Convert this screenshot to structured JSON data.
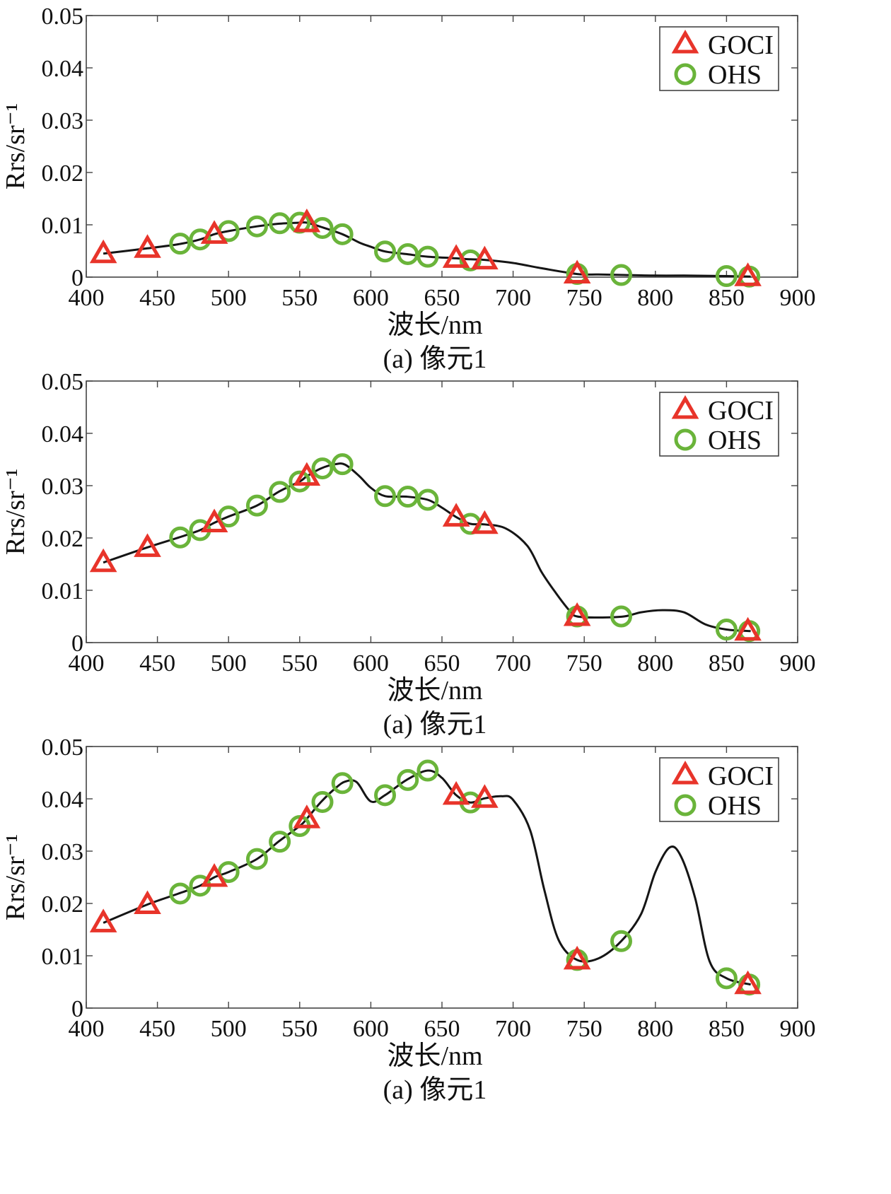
{
  "chart_data": [
    {
      "type": "line",
      "caption": "(a) 像元1",
      "xlabel": "波长/nm",
      "ylabel": "Rrs/sr⁻¹",
      "xlim": [
        400,
        900
      ],
      "ylim": [
        0,
        0.05
      ],
      "xticks": [
        "400",
        "450",
        "500",
        "550",
        "600",
        "650",
        "700",
        "750",
        "800",
        "850",
        "900"
      ],
      "yticks": [
        "0",
        "0.01",
        "0.02",
        "0.03",
        "0.04",
        "0.05"
      ],
      "legend": {
        "position": "top-right",
        "entries": [
          "GOCI",
          "OHS"
        ]
      },
      "curve": [
        [
          412,
          0.0045
        ],
        [
          443,
          0.0055
        ],
        [
          465,
          0.0063
        ],
        [
          480,
          0.0072
        ],
        [
          490,
          0.0082
        ],
        [
          500,
          0.0088
        ],
        [
          520,
          0.0097
        ],
        [
          535,
          0.0102
        ],
        [
          550,
          0.0104
        ],
        [
          555,
          0.0104
        ],
        [
          565,
          0.0096
        ],
        [
          580,
          0.0082
        ],
        [
          592,
          0.0066
        ],
        [
          600,
          0.0058
        ],
        [
          610,
          0.0049
        ],
        [
          625,
          0.0044
        ],
        [
          640,
          0.0039
        ],
        [
          660,
          0.0036
        ],
        [
          670,
          0.0034
        ],
        [
          680,
          0.0033
        ],
        [
          700,
          0.0027
        ],
        [
          720,
          0.0017
        ],
        [
          745,
          0.0006
        ],
        [
          760,
          0.0005
        ],
        [
          778,
          0.0004
        ],
        [
          800,
          0.0003
        ],
        [
          820,
          0.0003
        ],
        [
          850,
          0.0002
        ],
        [
          867,
          0.0001
        ]
      ],
      "series": [
        {
          "name": "GOCI",
          "marker": "triangle",
          "color": "#e8342a",
          "x": [
            412,
            443,
            490,
            555,
            660,
            680,
            745,
            865
          ],
          "y": [
            0.0045,
            0.0055,
            0.0082,
            0.0104,
            0.0036,
            0.0033,
            0.0006,
            0.0001
          ]
        },
        {
          "name": "OHS",
          "marker": "circle",
          "color": "#6ab43a",
          "x": [
            466,
            480,
            500,
            520,
            536,
            550,
            566,
            580,
            610,
            626,
            640,
            670,
            745,
            776,
            850,
            866
          ],
          "y": [
            0.0064,
            0.0072,
            0.0088,
            0.0097,
            0.0103,
            0.0104,
            0.0094,
            0.0082,
            0.0049,
            0.0044,
            0.0039,
            0.0032,
            0.0006,
            0.0004,
            0.0002,
            0.0001
          ]
        }
      ]
    },
    {
      "type": "line",
      "caption": "(a) 像元1",
      "xlabel": "波长/nm",
      "ylabel": "Rrs/sr⁻¹",
      "xlim": [
        400,
        900
      ],
      "ylim": [
        0,
        0.05
      ],
      "xticks": [
        "400",
        "450",
        "500",
        "550",
        "600",
        "650",
        "700",
        "750",
        "800",
        "850",
        "900"
      ],
      "yticks": [
        "0",
        "0.01",
        "0.02",
        "0.03",
        "0.04",
        "0.05"
      ],
      "legend": {
        "position": "top-right",
        "entries": [
          "GOCI",
          "OHS"
        ]
      },
      "curve": [
        [
          412,
          0.0153
        ],
        [
          443,
          0.0182
        ],
        [
          465,
          0.0201
        ],
        [
          480,
          0.0215
        ],
        [
          490,
          0.0229
        ],
        [
          500,
          0.0241
        ],
        [
          520,
          0.0262
        ],
        [
          535,
          0.0288
        ],
        [
          550,
          0.0308
        ],
        [
          555,
          0.0318
        ],
        [
          565,
          0.0333
        ],
        [
          575,
          0.0341
        ],
        [
          582,
          0.034
        ],
        [
          592,
          0.0318
        ],
        [
          600,
          0.0296
        ],
        [
          610,
          0.028
        ],
        [
          625,
          0.0279
        ],
        [
          640,
          0.0273
        ],
        [
          650,
          0.0258
        ],
        [
          660,
          0.024
        ],
        [
          670,
          0.0227
        ],
        [
          680,
          0.0226
        ],
        [
          695,
          0.0218
        ],
        [
          710,
          0.0185
        ],
        [
          720,
          0.0135
        ],
        [
          730,
          0.0095
        ],
        [
          740,
          0.006
        ],
        [
          745,
          0.005
        ],
        [
          760,
          0.0048
        ],
        [
          778,
          0.005
        ],
        [
          790,
          0.0058
        ],
        [
          805,
          0.0062
        ],
        [
          820,
          0.0058
        ],
        [
          835,
          0.0035
        ],
        [
          850,
          0.0025
        ],
        [
          867,
          0.0022
        ]
      ],
      "series": [
        {
          "name": "GOCI",
          "marker": "triangle",
          "color": "#e8342a",
          "x": [
            412,
            443,
            490,
            555,
            660,
            680,
            745,
            865
          ],
          "y": [
            0.0153,
            0.0182,
            0.0229,
            0.0318,
            0.024,
            0.0226,
            0.005,
            0.0022
          ]
        },
        {
          "name": "OHS",
          "marker": "circle",
          "color": "#6ab43a",
          "x": [
            466,
            480,
            500,
            520,
            536,
            550,
            566,
            580,
            610,
            626,
            640,
            670,
            745,
            776,
            850,
            866
          ],
          "y": [
            0.0201,
            0.0215,
            0.0241,
            0.0262,
            0.0288,
            0.0308,
            0.0333,
            0.0341,
            0.028,
            0.0279,
            0.0273,
            0.0227,
            0.005,
            0.005,
            0.0025,
            0.0022
          ]
        }
      ]
    },
    {
      "type": "line",
      "caption": "(a) 像元1",
      "xlabel": "波长/nm",
      "ylabel": "Rrs/sr⁻¹",
      "xlim": [
        400,
        900
      ],
      "ylim": [
        0,
        0.05
      ],
      "xticks": [
        "400",
        "450",
        "500",
        "550",
        "600",
        "650",
        "700",
        "750",
        "800",
        "850",
        "900"
      ],
      "yticks": [
        "0",
        "0.01",
        "0.02",
        "0.03",
        "0.04",
        "0.05"
      ],
      "legend": {
        "position": "top-right",
        "entries": [
          "GOCI",
          "OHS"
        ]
      },
      "curve": [
        [
          412,
          0.0163
        ],
        [
          443,
          0.0198
        ],
        [
          465,
          0.0219
        ],
        [
          480,
          0.0234
        ],
        [
          490,
          0.025
        ],
        [
          500,
          0.026
        ],
        [
          520,
          0.0285
        ],
        [
          535,
          0.0318
        ],
        [
          550,
          0.0348
        ],
        [
          555,
          0.0362
        ],
        [
          565,
          0.0394
        ],
        [
          575,
          0.042
        ],
        [
          582,
          0.0433
        ],
        [
          590,
          0.0432
        ],
        [
          600,
          0.0395
        ],
        [
          610,
          0.0407
        ],
        [
          625,
          0.0436
        ],
        [
          640,
          0.0454
        ],
        [
          650,
          0.044
        ],
        [
          660,
          0.0407
        ],
        [
          670,
          0.0393
        ],
        [
          680,
          0.0401
        ],
        [
          692,
          0.0405
        ],
        [
          700,
          0.0398
        ],
        [
          712,
          0.034
        ],
        [
          722,
          0.0225
        ],
        [
          732,
          0.013
        ],
        [
          745,
          0.0092
        ],
        [
          760,
          0.0095
        ],
        [
          776,
          0.0128
        ],
        [
          790,
          0.018
        ],
        [
          800,
          0.026
        ],
        [
          810,
          0.0307
        ],
        [
          818,
          0.029
        ],
        [
          828,
          0.021
        ],
        [
          838,
          0.009
        ],
        [
          850,
          0.0057
        ],
        [
          867,
          0.0045
        ]
      ],
      "series": [
        {
          "name": "GOCI",
          "marker": "triangle",
          "color": "#e8342a",
          "x": [
            412,
            443,
            490,
            555,
            660,
            680,
            745,
            865
          ],
          "y": [
            0.0163,
            0.0198,
            0.025,
            0.0362,
            0.0407,
            0.0401,
            0.0092,
            0.0045
          ]
        },
        {
          "name": "OHS",
          "marker": "circle",
          "color": "#6ab43a",
          "x": [
            466,
            480,
            500,
            520,
            536,
            550,
            566,
            580,
            610,
            626,
            640,
            670,
            745,
            776,
            850,
            866
          ],
          "y": [
            0.0219,
            0.0234,
            0.026,
            0.0285,
            0.0318,
            0.0348,
            0.0394,
            0.043,
            0.0407,
            0.0436,
            0.0454,
            0.0393,
            0.0092,
            0.0128,
            0.0057,
            0.0045
          ]
        }
      ]
    }
  ]
}
